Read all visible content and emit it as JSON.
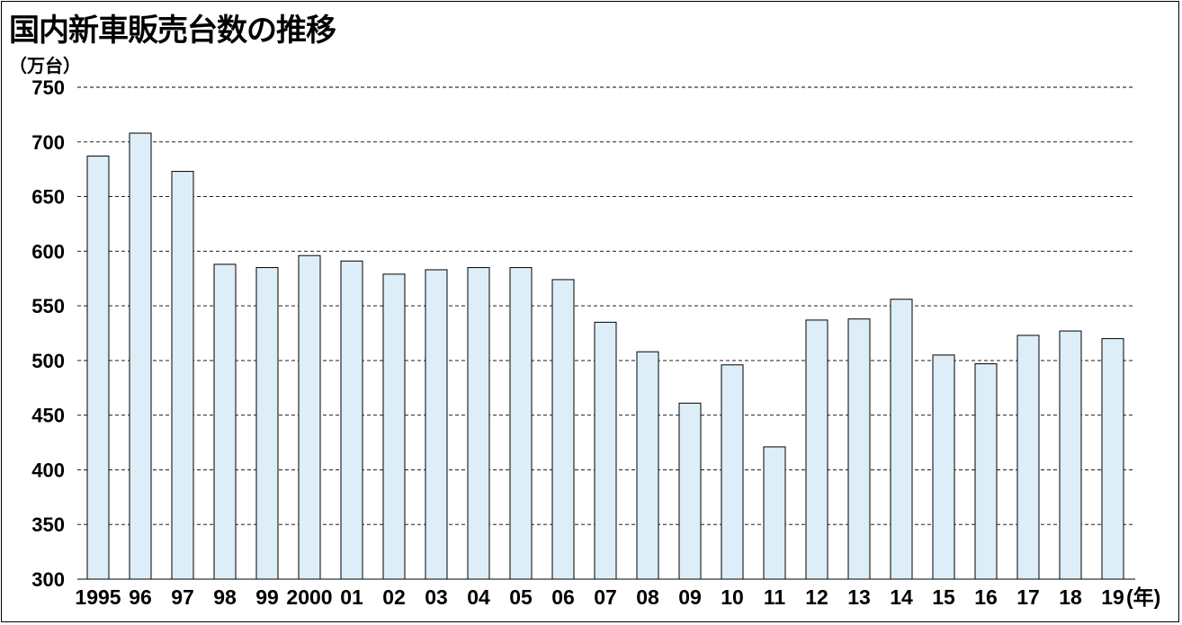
{
  "chart_data": {
    "type": "bar",
    "title": "国内新車販売台数の推移",
    "ylabel": "（万台）",
    "xlabel": "(年)",
    "ylim": [
      300,
      750
    ],
    "yticks": [
      750,
      700,
      650,
      600,
      550,
      500,
      450,
      400,
      350,
      300
    ],
    "grid": true,
    "bar_color": "#ddeef8",
    "categories": [
      "1995",
      "96",
      "97",
      "98",
      "99",
      "2000",
      "01",
      "02",
      "03",
      "04",
      "05",
      "06",
      "07",
      "08",
      "09",
      "10",
      "11",
      "12",
      "13",
      "14",
      "15",
      "16",
      "17",
      "18",
      "19"
    ],
    "values": [
      687,
      708,
      673,
      588,
      585,
      596,
      591,
      579,
      583,
      585,
      585,
      574,
      535,
      508,
      461,
      496,
      421,
      537,
      538,
      556,
      505,
      497,
      523,
      527,
      520
    ]
  }
}
